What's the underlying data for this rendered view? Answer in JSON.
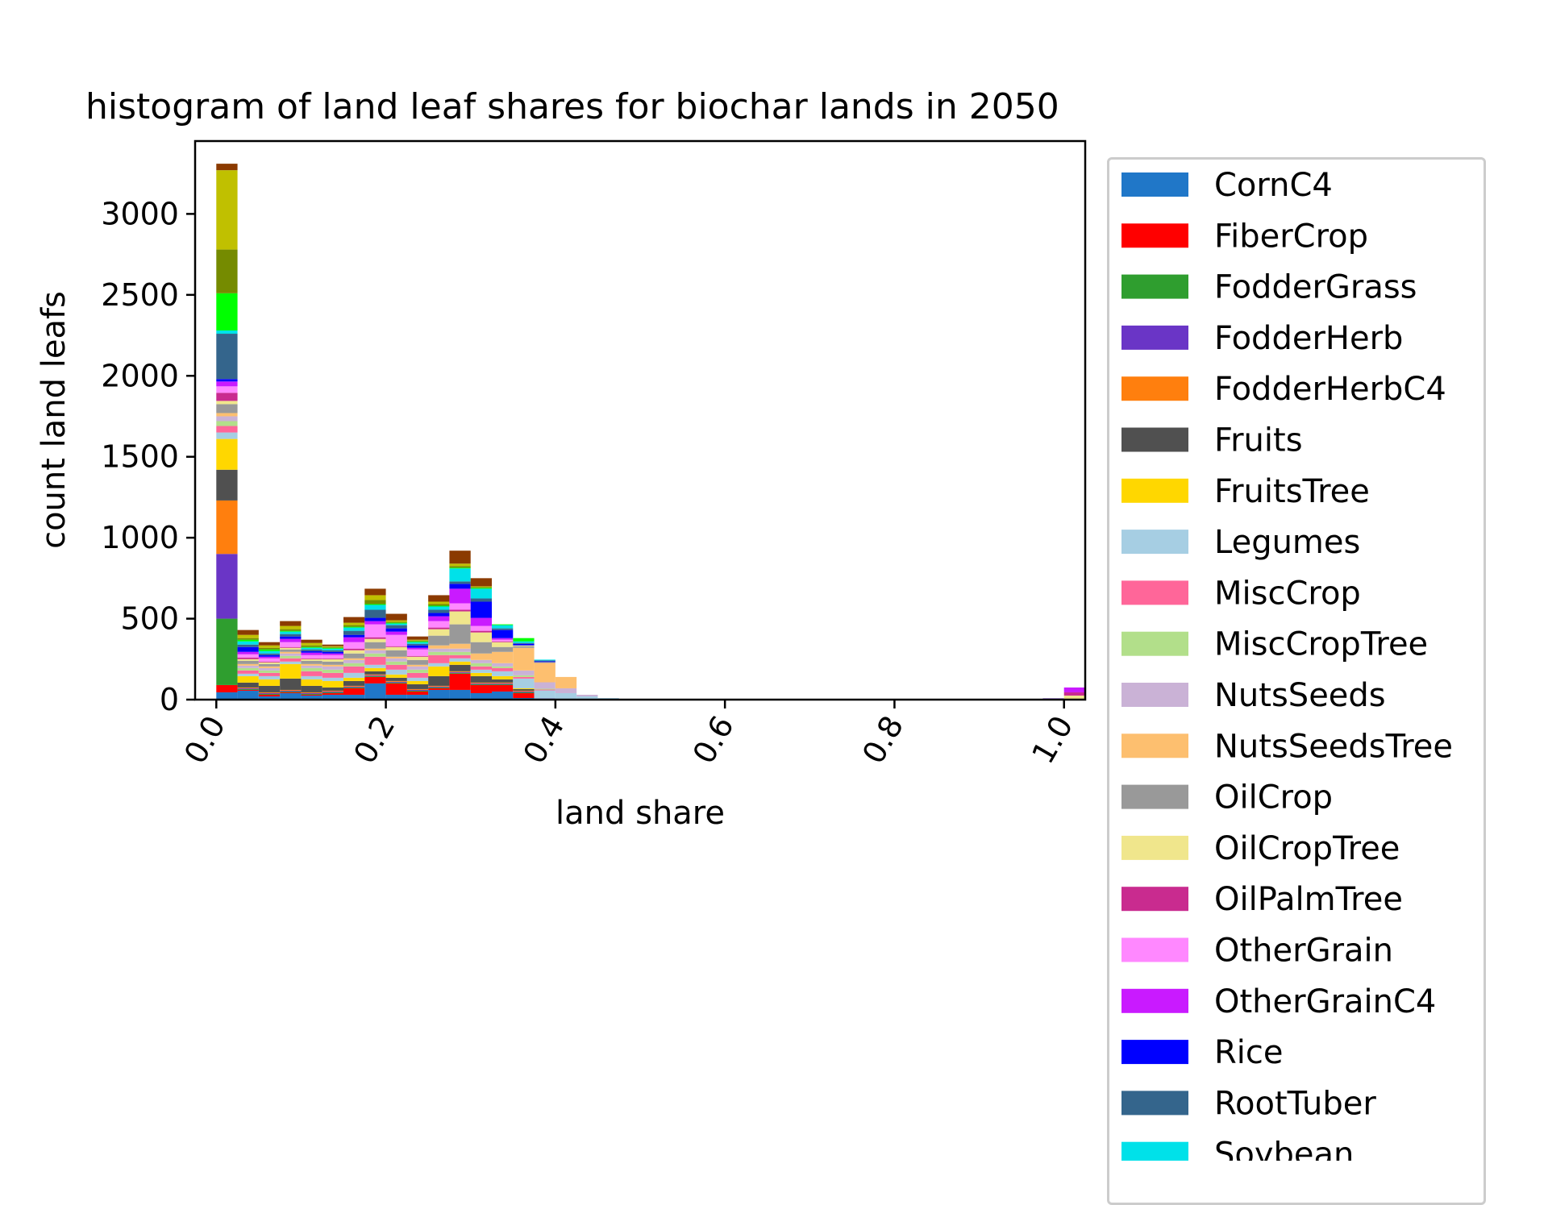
{
  "chart_data": {
    "type": "bar",
    "stacked": true,
    "title": "histogram of land leaf shares for biochar lands in 2050",
    "xlabel": "land share",
    "ylabel": "count land leafs",
    "xlim": [
      -0.025,
      1.025
    ],
    "ylim": [
      0,
      3450
    ],
    "xticks": [
      "0.0",
      "0.2",
      "0.4",
      "0.6",
      "0.8",
      "1.0"
    ],
    "yticks": [
      "0",
      "500",
      "1000",
      "1500",
      "2000",
      "2500",
      "3000"
    ],
    "bin_width": 0.025,
    "grid": false,
    "legend_position": "outside-right",
    "categories": [
      "0.0125",
      "0.0375",
      "0.0625",
      "0.0875",
      "0.1125",
      "0.1375",
      "0.1625",
      "0.1875",
      "0.2125",
      "0.2375",
      "0.2625",
      "0.2875",
      "0.3125",
      "0.3375",
      "0.3625",
      "0.3875",
      "0.4125",
      "0.4375",
      "0.4625",
      "0.4875",
      "0.5125",
      "0.5375",
      "0.5625",
      "0.5875",
      "0.6125",
      "0.9875",
      "1.0125"
    ],
    "series": [
      {
        "name": "CornC4",
        "color": "#2077c8",
        "values": [
          45,
          55,
          20,
          40,
          25,
          30,
          30,
          100,
          30,
          30,
          60,
          60,
          40,
          50,
          10,
          0,
          0,
          0,
          0,
          0,
          0,
          0,
          0,
          0,
          0,
          0,
          0
        ]
      },
      {
        "name": "FiberCrop",
        "color": "#ff0000",
        "values": [
          45,
          5,
          10,
          5,
          5,
          10,
          40,
          40,
          70,
          20,
          10,
          100,
          50,
          40,
          30,
          5,
          0,
          0,
          0,
          0,
          0,
          0,
          0,
          0,
          0,
          5,
          5
        ]
      },
      {
        "name": "FodderGrass",
        "color": "#2f9e2f",
        "values": [
          410,
          5,
          5,
          5,
          5,
          5,
          5,
          5,
          5,
          5,
          5,
          5,
          5,
          5,
          5,
          0,
          0,
          0,
          0,
          0,
          0,
          0,
          0,
          0,
          0,
          0,
          0
        ]
      },
      {
        "name": "FodderHerb",
        "color": "#6a35c6",
        "values": [
          400,
          5,
          5,
          5,
          5,
          5,
          5,
          5,
          5,
          5,
          5,
          5,
          5,
          5,
          5,
          2,
          0,
          0,
          0,
          0,
          0,
          0,
          3,
          3,
          5,
          3,
          0
        ]
      },
      {
        "name": "FodderHerbC4",
        "color": "#ff7f0e",
        "values": [
          330,
          5,
          5,
          5,
          5,
          5,
          5,
          5,
          5,
          5,
          5,
          5,
          5,
          5,
          5,
          0,
          0,
          0,
          0,
          0,
          0,
          0,
          0,
          0,
          0,
          0,
          0
        ]
      },
      {
        "name": "Fruits",
        "color": "#505050",
        "values": [
          190,
          30,
          40,
          70,
          40,
          20,
          30,
          20,
          20,
          30,
          60,
          40,
          40,
          20,
          10,
          0,
          0,
          0,
          0,
          0,
          0,
          0,
          0,
          0,
          0,
          0,
          0
        ]
      },
      {
        "name": "FruitsTree",
        "color": "#ffd700",
        "values": [
          190,
          40,
          40,
          90,
          40,
          40,
          20,
          20,
          20,
          20,
          60,
          20,
          20,
          20,
          5,
          0,
          0,
          0,
          0,
          0,
          0,
          0,
          0,
          0,
          0,
          0,
          0
        ]
      },
      {
        "name": "Legumes",
        "color": "#a6cee3",
        "values": [
          40,
          15,
          20,
          15,
          20,
          20,
          30,
          20,
          30,
          20,
          20,
          20,
          20,
          30,
          60,
          50,
          40,
          20,
          10,
          0,
          0,
          0,
          0,
          0,
          0,
          0,
          0
        ]
      },
      {
        "name": "MiscCrop",
        "color": "#ff6699",
        "values": [
          40,
          20,
          20,
          20,
          30,
          30,
          40,
          50,
          30,
          30,
          50,
          20,
          20,
          20,
          10,
          5,
          0,
          0,
          0,
          0,
          0,
          0,
          0,
          0,
          0,
          0,
          0
        ]
      },
      {
        "name": "MiscCropTree",
        "color": "#b2df8a",
        "values": [
          30,
          15,
          15,
          15,
          20,
          20,
          20,
          20,
          20,
          20,
          20,
          20,
          20,
          10,
          10,
          5,
          0,
          0,
          0,
          0,
          0,
          0,
          0,
          0,
          0,
          0,
          0
        ]
      },
      {
        "name": "NutsSeeds",
        "color": "#cab2d6",
        "values": [
          30,
          15,
          15,
          15,
          15,
          20,
          20,
          20,
          20,
          20,
          20,
          20,
          20,
          20,
          30,
          40,
          30,
          10,
          0,
          0,
          0,
          0,
          0,
          0,
          0,
          0,
          0
        ]
      },
      {
        "name": "NutsSeedsTree",
        "color": "#fdbf6f",
        "values": [
          20,
          10,
          10,
          10,
          10,
          10,
          10,
          10,
          10,
          10,
          20,
          30,
          40,
          70,
          140,
          120,
          70,
          0,
          0,
          0,
          0,
          0,
          0,
          0,
          0,
          0,
          0
        ]
      },
      {
        "name": "OilCrop",
        "color": "#999999",
        "values": [
          55,
          20,
          15,
          15,
          20,
          20,
          30,
          40,
          40,
          30,
          60,
          120,
          70,
          30,
          10,
          5,
          0,
          0,
          0,
          0,
          0,
          0,
          0,
          0,
          0,
          0,
          0
        ]
      },
      {
        "name": "OilCropTree",
        "color": "#f0e68c",
        "values": [
          20,
          10,
          10,
          10,
          10,
          15,
          20,
          20,
          20,
          20,
          40,
          80,
          60,
          30,
          5,
          0,
          0,
          0,
          0,
          0,
          0,
          0,
          0,
          0,
          0,
          0,
          20
        ]
      },
      {
        "name": "OilPalmTree",
        "color": "#c92b8f",
        "values": [
          50,
          10,
          5,
          5,
          5,
          5,
          10,
          10,
          5,
          5,
          10,
          10,
          10,
          5,
          0,
          0,
          0,
          0,
          0,
          0,
          0,
          0,
          0,
          0,
          0,
          0,
          20
        ]
      },
      {
        "name": "OtherGrain",
        "color": "#ff88ff",
        "values": [
          40,
          20,
          20,
          30,
          20,
          20,
          40,
          80,
          70,
          40,
          40,
          40,
          30,
          10,
          0,
          0,
          0,
          0,
          0,
          0,
          0,
          0,
          0,
          0,
          0,
          0,
          0
        ]
      },
      {
        "name": "OtherGrainC4",
        "color": "#c91aff",
        "values": [
          30,
          15,
          10,
          20,
          15,
          10,
          30,
          20,
          20,
          10,
          30,
          90,
          50,
          10,
          0,
          0,
          0,
          0,
          0,
          0,
          0,
          0,
          0,
          0,
          0,
          0,
          30
        ]
      },
      {
        "name": "Rice",
        "color": "#0000ff",
        "values": [
          15,
          30,
          10,
          15,
          10,
          10,
          15,
          20,
          20,
          15,
          20,
          30,
          100,
          50,
          10,
          5,
          0,
          0,
          0,
          0,
          0,
          0,
          0,
          0,
          0,
          0,
          0
        ]
      },
      {
        "name": "RootTuber",
        "color": "#34658c",
        "values": [
          280,
          15,
          10,
          15,
          10,
          10,
          25,
          50,
          20,
          10,
          20,
          15,
          20,
          10,
          5,
          5,
          0,
          0,
          0,
          0,
          0,
          0,
          0,
          0,
          0,
          0,
          0
        ]
      },
      {
        "name": "Soybean",
        "color": "#00e1e9",
        "values": [
          20,
          20,
          15,
          15,
          10,
          10,
          20,
          30,
          10,
          10,
          20,
          80,
          60,
          20,
          10,
          5,
          0,
          0,
          0,
          0,
          0,
          0,
          0,
          0,
          0,
          0,
          0
        ]
      },
      {
        "name": "",
        "color": "#00ff00",
        "values": [
          230,
          10,
          10,
          5,
          5,
          5,
          5,
          5,
          5,
          5,
          5,
          5,
          5,
          5,
          20,
          0,
          0,
          0,
          0,
          0,
          0,
          0,
          0,
          0,
          0,
          0,
          0
        ]
      },
      {
        "name": "",
        "color": "#758b00",
        "values": [
          270,
          10,
          10,
          10,
          10,
          5,
          10,
          25,
          5,
          5,
          10,
          10,
          5,
          0,
          0,
          0,
          0,
          0,
          0,
          0,
          0,
          0,
          0,
          0,
          0,
          0,
          0
        ]
      },
      {
        "name": "",
        "color": "#c0c000",
        "values": [
          490,
          20,
          15,
          20,
          15,
          5,
          15,
          30,
          10,
          5,
          15,
          15,
          5,
          0,
          0,
          0,
          0,
          0,
          0,
          0,
          0,
          0,
          0,
          0,
          0,
          0,
          0
        ]
      },
      {
        "name": "",
        "color": "#8b3a00",
        "values": [
          40,
          30,
          20,
          30,
          20,
          10,
          35,
          40,
          40,
          20,
          40,
          80,
          50,
          0,
          0,
          0,
          0,
          0,
          0,
          0,
          0,
          0,
          0,
          0,
          0,
          0,
          0
        ]
      }
    ]
  }
}
